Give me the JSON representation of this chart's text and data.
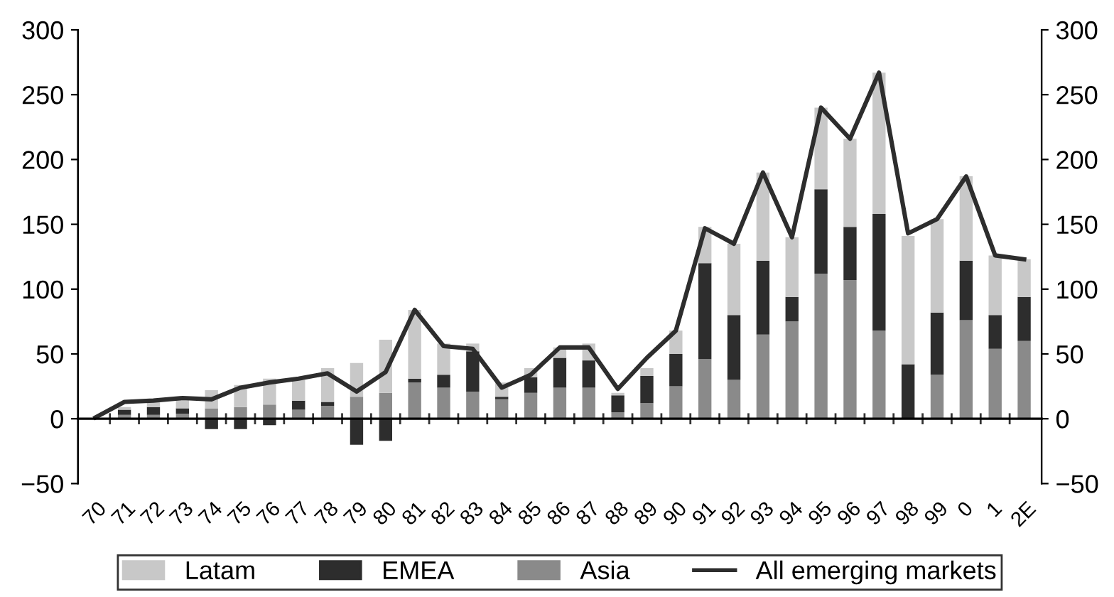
{
  "chart_data": {
    "type": "bar",
    "stacked": true,
    "categories": [
      "70",
      "71",
      "72",
      "73",
      "74",
      "75",
      "76",
      "77",
      "78",
      "79",
      "80",
      "81",
      "82",
      "83",
      "84",
      "85",
      "86",
      "87",
      "88",
      "89",
      "90",
      "91",
      "92",
      "93",
      "94",
      "95",
      "96",
      "97",
      "98",
      "99",
      "0",
      "1",
      "2E"
    ],
    "series": [
      {
        "name": "Asia",
        "color": "#8a8a8a",
        "values": [
          0,
          3,
          3,
          4,
          8,
          9,
          11,
          7,
          10,
          17,
          20,
          28,
          24,
          21,
          15,
          20,
          24,
          24,
          5,
          12,
          25,
          46,
          30,
          65,
          75,
          112,
          107,
          68,
          0,
          34,
          76,
          54,
          60
        ]
      },
      {
        "name": "EMEA",
        "color": "#2d2d2d",
        "values": [
          0,
          4,
          6,
          4,
          -8,
          -8,
          -5,
          7,
          3,
          -20,
          -17,
          3,
          10,
          31,
          2,
          12,
          23,
          21,
          13,
          21,
          25,
          74,
          50,
          57,
          19,
          65,
          41,
          90,
          42,
          48,
          46,
          26,
          34
        ]
      },
      {
        "name": "Latam",
        "color": "#c8c8c8",
        "values": [
          0,
          2,
          4,
          8,
          14,
          17,
          20,
          16,
          26,
          26,
          41,
          53,
          24,
          6,
          11,
          7,
          8,
          13,
          2,
          6,
          18,
          28,
          55,
          68,
          46,
          63,
          68,
          109,
          99,
          72,
          65,
          46,
          29
        ]
      },
      {
        "name": "All emerging markets",
        "type": "line",
        "color": "#2d2d2d",
        "values": [
          1,
          13,
          14,
          16,
          15,
          24,
          28,
          31,
          35,
          21,
          36,
          84,
          56,
          54,
          24,
          34,
          55,
          55,
          23,
          47,
          68,
          147,
          135,
          190,
          140,
          240,
          216,
          267,
          143,
          154,
          187,
          126,
          123
        ]
      }
    ],
    "ylim": [
      -50,
      300
    ],
    "yticks": [
      {
        "value": -50,
        "label": "−50"
      },
      0,
      50,
      100,
      150,
      200,
      250,
      300
    ],
    "y2lim": [
      -50,
      300
    ],
    "y2ticks": [
      {
        "value": -50,
        "label": "−50"
      },
      0,
      50,
      100,
      150,
      200,
      250,
      300
    ],
    "legend": "bottom"
  }
}
